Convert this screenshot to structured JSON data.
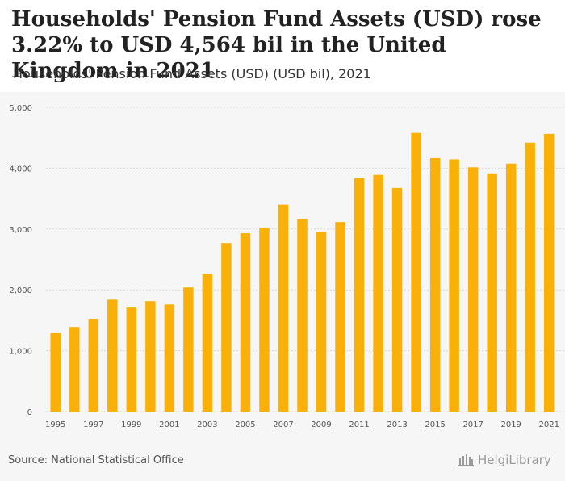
{
  "title": "Households' Pension Fund Assets (USD) rose 3.22% to USD 4,564 bil in the United Kingdom in 2021",
  "subtitle": "Households' Pension Fund Assets (USD) (USD bil), 2021",
  "source": "Source: National Statistical Office",
  "logo_text": "HelgiLibrary",
  "colors": {
    "bar": "#f9b109",
    "grid": "#d9d9d9",
    "axis_text": "#555555"
  },
  "chart_data": {
    "type": "bar",
    "title": "Households' Pension Fund Assets (USD) rose 3.22% to USD 4,564 bil in the United Kingdom in 2021",
    "xlabel": "",
    "ylabel": "USD bil",
    "ylim": [
      0,
      5000
    ],
    "yticks": [
      0,
      1000,
      2000,
      3000,
      4000,
      5000
    ],
    "ytick_labels": [
      "0",
      "1,000",
      "2,000",
      "3,000",
      "4,000",
      "5,000"
    ],
    "categories": [
      "1995",
      "1996",
      "1997",
      "1998",
      "1999",
      "2000",
      "2001",
      "2002",
      "2003",
      "2004",
      "2005",
      "2006",
      "2007",
      "2008",
      "2009",
      "2010",
      "2011",
      "2012",
      "2013",
      "2014",
      "2015",
      "2016",
      "2017",
      "2018",
      "2019",
      "2020",
      "2021"
    ],
    "xtick_labels": [
      "1995",
      "",
      "1997",
      "",
      "1999",
      "",
      "2001",
      "",
      "2003",
      "",
      "2005",
      "",
      "2007",
      "",
      "2009",
      "",
      "2011",
      "",
      "2013",
      "",
      "2015",
      "",
      "2017",
      "",
      "2019",
      "",
      "2021"
    ],
    "values": [
      1295,
      1390,
      1525,
      1840,
      1710,
      1815,
      1760,
      2040,
      2265,
      2770,
      2930,
      3025,
      3400,
      3170,
      2955,
      3115,
      3835,
      3890,
      3675,
      4580,
      4165,
      4145,
      4015,
      3915,
      4075,
      4420,
      4564
    ]
  }
}
